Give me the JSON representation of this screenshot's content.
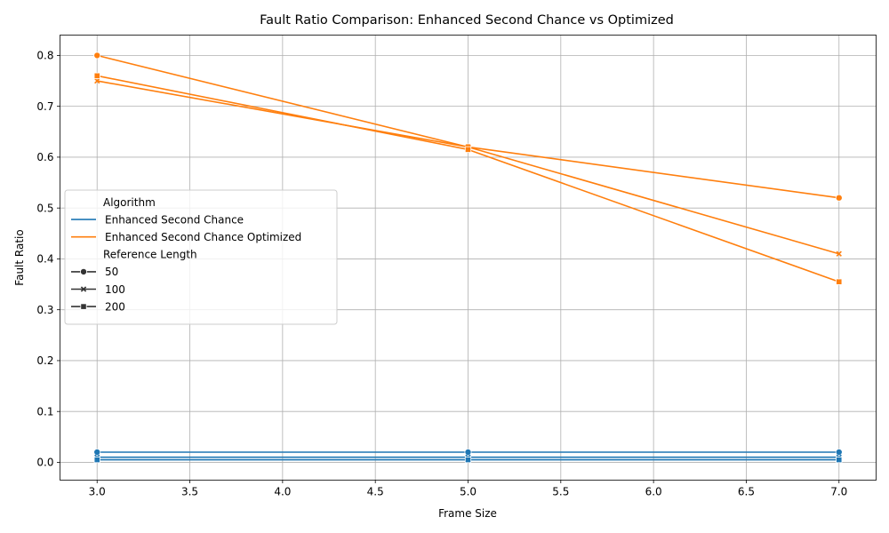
{
  "chart_data": {
    "type": "line",
    "title": "Fault Ratio Comparison: Enhanced Second Chance vs Optimized",
    "xlabel": "Frame Size",
    "ylabel": "Fault Ratio",
    "xlim": [
      2.8,
      7.2
    ],
    "ylim": [
      -0.035,
      0.84
    ],
    "xticks": [
      "3.0",
      "3.5",
      "4.0",
      "4.5",
      "5.0",
      "5.5",
      "6.0",
      "6.5",
      "7.0"
    ],
    "yticks": [
      "0.0",
      "0.1",
      "0.2",
      "0.3",
      "0.4",
      "0.5",
      "0.6",
      "0.7",
      "0.8"
    ],
    "grid": true,
    "legend_position": "center-left",
    "x": [
      3,
      5,
      7
    ],
    "series": [
      {
        "algorithm": "Enhanced Second Chance",
        "reference_length": "50",
        "marker": "circle",
        "color": "#1f77b4",
        "values": [
          0.02,
          0.02,
          0.02
        ]
      },
      {
        "algorithm": "Enhanced Second Chance",
        "reference_length": "100",
        "marker": "x",
        "color": "#1f77b4",
        "values": [
          0.01,
          0.01,
          0.01
        ]
      },
      {
        "algorithm": "Enhanced Second Chance",
        "reference_length": "200",
        "marker": "square",
        "color": "#1f77b4",
        "values": [
          0.005,
          0.005,
          0.005
        ]
      },
      {
        "algorithm": "Enhanced Second Chance Optimized",
        "reference_length": "50",
        "marker": "circle",
        "color": "#ff7f0e",
        "values": [
          0.8,
          0.62,
          0.52
        ]
      },
      {
        "algorithm": "Enhanced Second Chance Optimized",
        "reference_length": "100",
        "marker": "x",
        "color": "#ff7f0e",
        "values": [
          0.75,
          0.62,
          0.41
        ]
      },
      {
        "algorithm": "Enhanced Second Chance Optimized",
        "reference_length": "200",
        "marker": "square",
        "color": "#ff7f0e",
        "values": [
          0.76,
          0.615,
          0.355
        ]
      }
    ],
    "legend": {
      "hue_title": "Algorithm",
      "hue_items": [
        {
          "label": "Enhanced Second Chance",
          "color": "#1f77b4"
        },
        {
          "label": "Enhanced Second Chance Optimized",
          "color": "#ff7f0e"
        }
      ],
      "style_title": "Reference Length",
      "style_items": [
        {
          "label": "50",
          "marker": "circle"
        },
        {
          "label": "100",
          "marker": "x"
        },
        {
          "label": "200",
          "marker": "square"
        }
      ]
    }
  }
}
